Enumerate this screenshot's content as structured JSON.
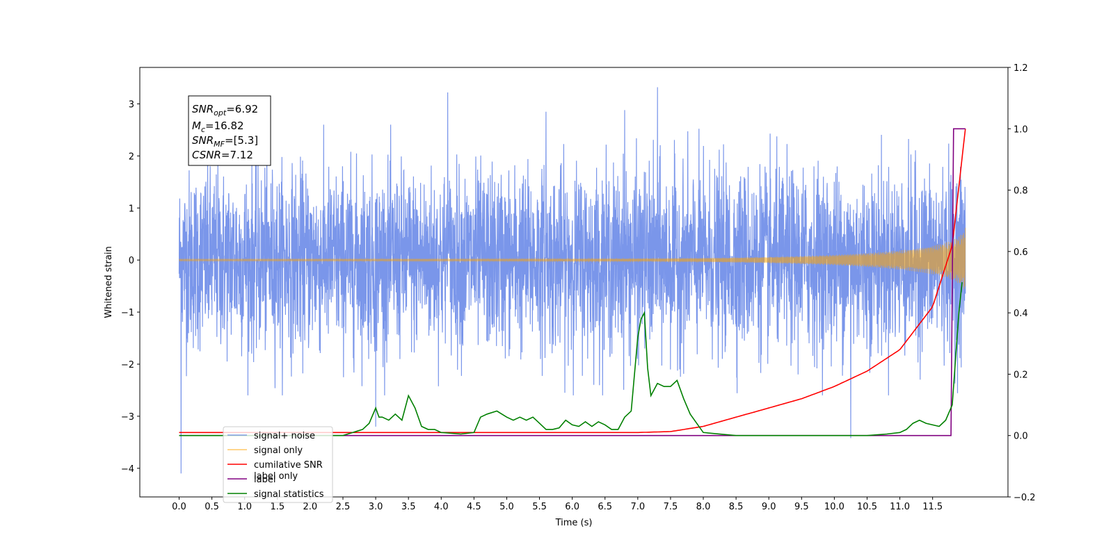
{
  "chart_data": {
    "type": "line",
    "xlabel": "Time (s)",
    "ylabel": "Whitened strain",
    "xlim": [
      -0.6,
      12.65
    ],
    "ylim": [
      -4.55,
      3.7
    ],
    "y2lim": [
      -0.2,
      1.2
    ],
    "xticks": [
      "0.0",
      "0.5",
      "1.0",
      "1.5",
      "2.0",
      "2.5",
      "3.0",
      "3.5",
      "4.0",
      "4.5",
      "5.0",
      "5.5",
      "6.0",
      "6.5",
      "7.0",
      "7.5",
      "8.0",
      "8.5",
      "9.0",
      "9.5",
      "10.0",
      "10.5",
      "11.0",
      "11.5"
    ],
    "xtick_values": [
      0.0,
      0.5,
      1.0,
      1.5,
      2.0,
      2.5,
      3.0,
      3.5,
      4.0,
      4.5,
      5.0,
      5.5,
      6.0,
      6.5,
      7.0,
      7.5,
      8.0,
      8.5,
      9.0,
      9.5,
      10.0,
      10.5,
      11.0,
      11.5
    ],
    "yticks": [
      "−4",
      "−3",
      "−2",
      "−1",
      "0",
      "1",
      "2",
      "3"
    ],
    "ytick_values": [
      -4,
      -3,
      -2,
      -1,
      0,
      1,
      2,
      3
    ],
    "y2ticks": [
      "−0.2",
      "0.0",
      "0.2",
      "0.4",
      "0.6",
      "0.8",
      "1.0",
      "1.2"
    ],
    "y2tick_values": [
      -0.2,
      0.0,
      0.2,
      0.4,
      0.6,
      0.8,
      1.0,
      1.2
    ],
    "annotations": {
      "snr_opt": {
        "symbol": "SNR",
        "sub": "opt",
        "value": "=6.92"
      },
      "mc": {
        "symbol": "M",
        "sub": "c",
        "value": "=16.82"
      },
      "snr_mf": {
        "symbol": "SNR",
        "sub": "MF",
        "value": "=[5.3]"
      },
      "csnr": {
        "symbol": "CSNR",
        "value": "=7.12"
      }
    },
    "legend": {
      "placement": "lower-left",
      "entries": [
        {
          "label": "signal+ noise",
          "color": "#4169e1"
        },
        {
          "label": "signal only",
          "color": "#ffa500"
        },
        {
          "label": "cumilative SNR",
          "color": "#ff0000"
        },
        {
          "label": "label",
          "color": "#800080"
        },
        {
          "label": "signal statistics",
          "color": "#008000"
        }
      ],
      "hidden_label": "label only"
    },
    "series": [
      {
        "name": "signal+ noise",
        "axis": "left",
        "color": "#4169e1",
        "description_of_values": "dense noise time series, x from 0 to 12 s",
        "noise_sigma": 0.85,
        "peaks": [
          [
            0.03,
            -4.1
          ],
          [
            7.3,
            3.32
          ],
          [
            4.1,
            3.22
          ],
          [
            10.25,
            -3.42
          ],
          [
            5.6,
            2.85
          ],
          [
            6.8,
            2.88
          ],
          [
            3.0,
            -3.2
          ]
        ]
      },
      {
        "name": "signal only",
        "axis": "left",
        "color": "#ffa500",
        "description_of_values": "chirp from 0 s, amplitude near 0 until ~9 s, growing to about 0.6 by 12 s"
      },
      {
        "name": "cumilative SNR",
        "axis": "right",
        "color": "#ff0000",
        "x": [
          0.0,
          7.0,
          7.5,
          8.0,
          8.5,
          9.0,
          9.5,
          10.0,
          10.5,
          11.0,
          11.5,
          11.8,
          12.0
        ],
        "y": [
          0.01,
          0.01,
          0.013,
          0.03,
          0.06,
          0.09,
          0.12,
          0.16,
          0.21,
          0.28,
          0.42,
          0.62,
          1.0
        ]
      },
      {
        "name": "label",
        "axis": "right",
        "color": "#800080",
        "x": [
          0.0,
          11.78,
          11.82,
          12.0
        ],
        "y": [
          0.0,
          0.0,
          1.0,
          1.0
        ]
      },
      {
        "name": "signal statistics",
        "axis": "right",
        "color": "#008000",
        "x": [
          0.0,
          2.5,
          2.8,
          2.9,
          3.0,
          3.05,
          3.1,
          3.2,
          3.3,
          3.4,
          3.5,
          3.6,
          3.7,
          3.8,
          3.9,
          4.0,
          4.3,
          4.5,
          4.6,
          4.7,
          4.85,
          5.0,
          5.1,
          5.2,
          5.3,
          5.4,
          5.5,
          5.6,
          5.7,
          5.8,
          5.9,
          6.0,
          6.1,
          6.2,
          6.3,
          6.4,
          6.5,
          6.6,
          6.7,
          6.8,
          6.9,
          7.0,
          7.05,
          7.1,
          7.15,
          7.2,
          7.3,
          7.4,
          7.5,
          7.6,
          7.7,
          7.8,
          8.0,
          8.5,
          10.5,
          10.8,
          11.0,
          11.1,
          11.2,
          11.3,
          11.4,
          11.6,
          11.7,
          11.8,
          11.9,
          11.95
        ],
        "y": [
          0.0,
          0.0,
          0.02,
          0.04,
          0.09,
          0.06,
          0.06,
          0.05,
          0.07,
          0.05,
          0.13,
          0.09,
          0.03,
          0.02,
          0.02,
          0.01,
          0.005,
          0.01,
          0.06,
          0.07,
          0.08,
          0.06,
          0.05,
          0.06,
          0.05,
          0.06,
          0.04,
          0.02,
          0.02,
          0.025,
          0.05,
          0.035,
          0.03,
          0.045,
          0.03,
          0.045,
          0.035,
          0.02,
          0.02,
          0.06,
          0.08,
          0.32,
          0.38,
          0.4,
          0.22,
          0.13,
          0.17,
          0.16,
          0.16,
          0.18,
          0.12,
          0.07,
          0.01,
          0.0,
          0.0,
          0.005,
          0.01,
          0.02,
          0.04,
          0.05,
          0.04,
          0.03,
          0.05,
          0.1,
          0.4,
          0.5
        ]
      }
    ]
  }
}
